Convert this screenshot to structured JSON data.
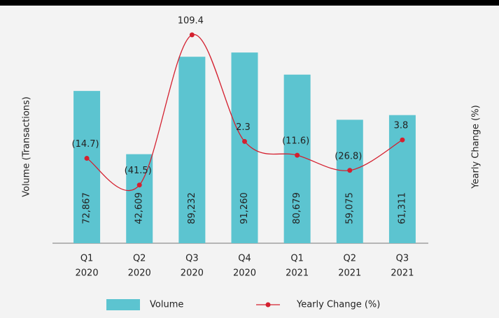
{
  "chart_data": {
    "type": "bar",
    "categories": [
      [
        "Q1",
        "2020"
      ],
      [
        "Q2",
        "2020"
      ],
      [
        "Q3",
        "2020"
      ],
      [
        "Q4",
        "2020"
      ],
      [
        "Q1",
        "2021"
      ],
      [
        "Q2",
        "2021"
      ],
      [
        "Q3",
        "2021"
      ]
    ],
    "y_label": "Volume (Transactions)",
    "y2_label": "Yearly Change (%)",
    "ylim": [
      0,
      100000
    ],
    "y2lim": [
      -100,
      110
    ],
    "series": [
      {
        "name": "Volume",
        "type": "bar",
        "color": "#5cc4d0",
        "values": [
          72867,
          42609,
          89232,
          91260,
          80679,
          59075,
          61311
        ],
        "value_labels": [
          "72,867",
          "42,609",
          "89,232",
          "91,260",
          "80,679",
          "59,075",
          "61,311"
        ]
      },
      {
        "name": "Yearly Change (%)",
        "type": "line",
        "axis": "y2",
        "color": "#d4202f",
        "values": [
          -14.7,
          -41.5,
          109.4,
          2.3,
          -11.6,
          -26.8,
          3.8
        ],
        "value_labels": [
          "(14.7)",
          "(41.5)",
          "109.4",
          "2.3",
          "(11.6)",
          "(26.8)",
          "3.8"
        ]
      }
    ]
  }
}
